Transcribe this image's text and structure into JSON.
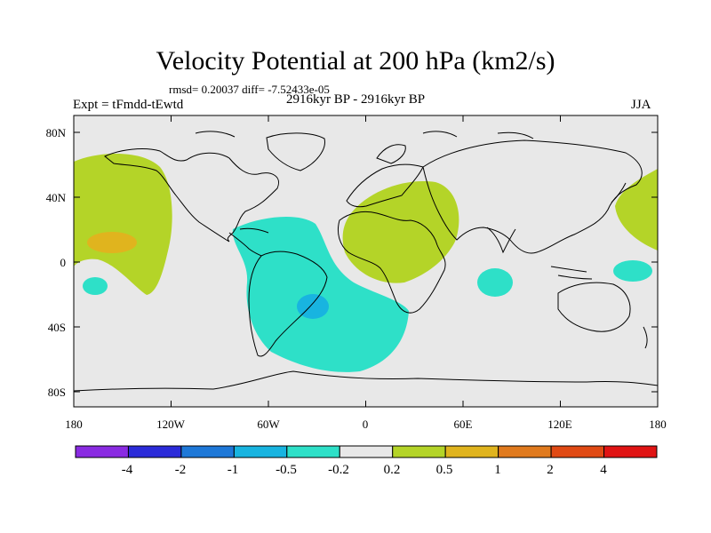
{
  "title": "Velocity Potential at 200 hPa (km2/s)",
  "stats": "rmsd= 0.20037 diff= -7.52433e-05",
  "experiment": "Expt = tFmdd-tEwtd",
  "period": "2916kyr BP - 2916kyr BP",
  "season": "JJA",
  "lat_labels": [
    "80N",
    "40N",
    "0",
    "40S",
    "80S"
  ],
  "lon_labels": [
    "180",
    "120W",
    "60W",
    "0",
    "60E",
    "120E",
    "180"
  ],
  "colorbar": {
    "labels": [
      "-4",
      "-2",
      "-1",
      "-0.5",
      "-0.2",
      "0.2",
      "0.5",
      "1",
      "2",
      "4"
    ],
    "colors": [
      "#8a2be2",
      "#2b2bd9",
      "#1e78d8",
      "#18b4e0",
      "#2ee0c8",
      "#e8e8e8",
      "#b4d428",
      "#e0b41e",
      "#e07a1e",
      "#e04a14",
      "#e01414"
    ]
  },
  "colors": {
    "ocean_land_bg": "#e8e8e8",
    "positive_light": "#b4d428",
    "positive_mid": "#e0b41e",
    "negative_light": "#2ee0c8",
    "negative_mid": "#18b4e0"
  }
}
